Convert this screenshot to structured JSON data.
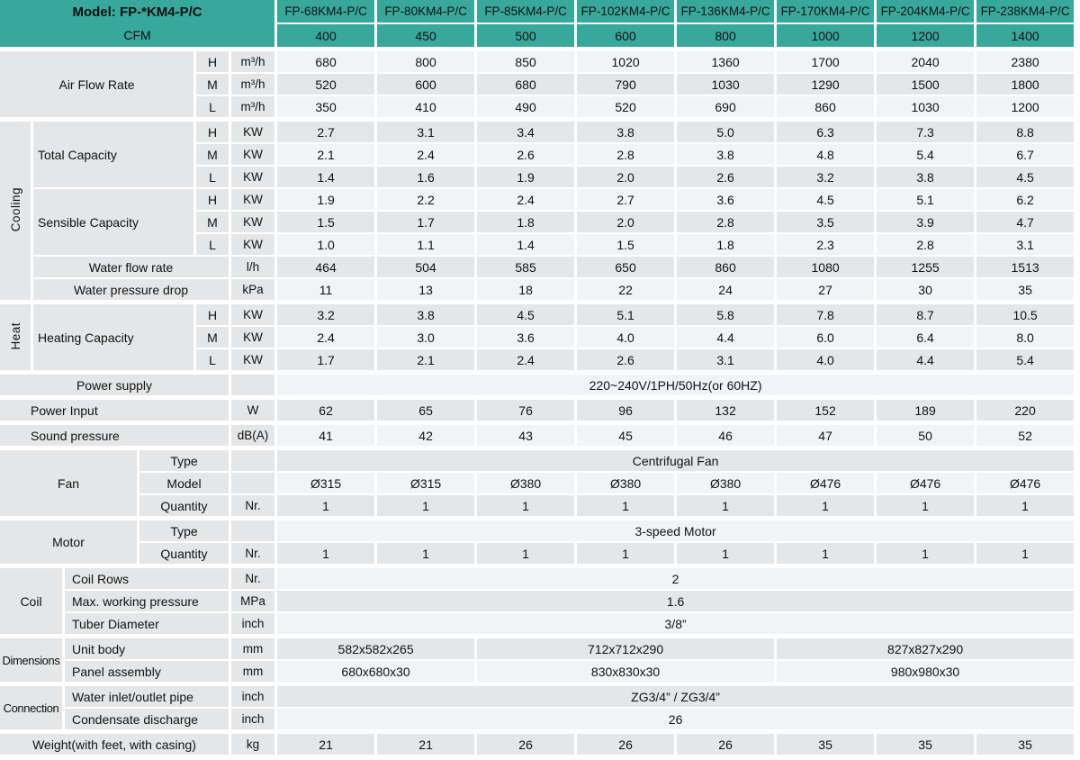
{
  "colors": {
    "teal": "#38A89C",
    "label_bg": "#E4E6E8",
    "row_light": "#F0F4F6",
    "row_dark": "#E4E7E9",
    "text": "#111111"
  },
  "header": {
    "model_label": "Model: FP-*KM4-P/C",
    "cfm_label": "CFM",
    "models": [
      "FP-68KM4-P/C",
      "FP-80KM4-P/C",
      "FP-85KM4-P/C",
      "FP-102KM4-P/C",
      "FP-136KM4-P/C",
      "FP-170KM4-P/C",
      "FP-204KM4-P/C",
      "FP-238KM4-P/C"
    ],
    "cfm_values": [
      "400",
      "450",
      "500",
      "600",
      "800",
      "1000",
      "1200",
      "1400"
    ]
  },
  "table": {
    "rows": [
      {
        "n": "header-model",
        "h": true,
        "cls": "th",
        "cells": [
          {
            "lines": [
              "Model: FP-*KM4-P/C",
              "CFM"
            ],
            "cs": 6,
            "rs": 2,
            "cls": "teal corner",
            "n": "model-header"
          },
          {
            "t": "FP-68KM4-P/C",
            "cls": "teal",
            "n": "column-header-1"
          },
          {
            "t": "FP-80KM4-P/C",
            "cls": "teal",
            "n": "column-header-2"
          },
          {
            "t": "FP-85KM4-P/C",
            "cls": "teal",
            "n": "column-header-3"
          },
          {
            "t": "FP-102KM4-P/C",
            "cls": "teal",
            "n": "column-header-4"
          },
          {
            "t": "FP-136KM4-P/C",
            "cls": "teal",
            "n": "column-header-5"
          },
          {
            "t": "FP-170KM4-P/C",
            "cls": "teal",
            "n": "column-header-6"
          },
          {
            "t": "FP-204KM4-P/C",
            "cls": "teal",
            "n": "column-header-7"
          },
          {
            "t": "FP-238KM4-P/C",
            "cls": "teal",
            "n": "column-header-8"
          }
        ]
      },
      {
        "n": "header-cfm",
        "h": true,
        "cls": "cfm",
        "cells": [
          {
            "t": "400",
            "cls": "teal"
          },
          {
            "t": "450",
            "cls": "teal"
          },
          {
            "t": "500",
            "cls": "teal"
          },
          {
            "t": "600",
            "cls": "teal"
          },
          {
            "t": "800",
            "cls": "teal"
          },
          {
            "t": "1000",
            "cls": "teal"
          },
          {
            "t": "1200",
            "cls": "teal"
          },
          {
            "t": "1400",
            "cls": "teal"
          }
        ]
      },
      {
        "n": "gap",
        "sp": true
      },
      {
        "n": "air-flow-h",
        "cells": [
          {
            "t": "Air Flow Rate",
            "cs": 4,
            "rs": 3,
            "cls": "g",
            "n": "air-flow-rate-label"
          },
          {
            "t": "H",
            "cls": "g",
            "n": "speed-label"
          },
          {
            "t": "m³/h",
            "cls": "g u",
            "n": "unit-label"
          },
          "680",
          "800",
          "850",
          "1020",
          "1360",
          "1700",
          "2040",
          "2380"
        ]
      },
      {
        "n": "air-flow-m",
        "cells": [
          {
            "t": "M",
            "cls": "g",
            "n": "speed-label"
          },
          {
            "t": "m³/h",
            "cls": "g u",
            "n": "unit-label"
          },
          "520",
          "600",
          "680",
          "790",
          "1030",
          "1290",
          "1500",
          "1800"
        ]
      },
      {
        "n": "air-flow-l",
        "cells": [
          {
            "t": "L",
            "cls": "g",
            "n": "speed-label"
          },
          {
            "t": "m³/h",
            "cls": "g u",
            "n": "unit-label"
          },
          "350",
          "410",
          "490",
          "520",
          "690",
          "860",
          "1030",
          "1200"
        ]
      },
      {
        "n": "gap",
        "sp": true
      },
      {
        "n": "total-capacity-h",
        "cells": [
          {
            "t": "Cooling",
            "rs": 8,
            "cls": "g v",
            "vert": true,
            "n": "cooling-group-label"
          },
          {
            "t": "Total Capacity",
            "cs": 3,
            "rs": 3,
            "cls": "g al",
            "n": "total-capacity-label"
          },
          {
            "t": "H",
            "cls": "g",
            "n": "speed-label"
          },
          {
            "t": "KW",
            "cls": "g u",
            "n": "unit-label"
          },
          "2.7",
          "3.1",
          "3.4",
          "3.8",
          "5.0",
          "6.3",
          "7.3",
          "8.8"
        ]
      },
      {
        "n": "total-capacity-m",
        "cells": [
          {
            "t": "M",
            "cls": "g",
            "n": "speed-label"
          },
          {
            "t": "KW",
            "cls": "g u",
            "n": "unit-label"
          },
          "2.1",
          "2.4",
          "2.6",
          "2.8",
          "3.8",
          "4.8",
          "5.4",
          "6.7"
        ]
      },
      {
        "n": "total-capacity-l",
        "cells": [
          {
            "t": "L",
            "cls": "g",
            "n": "speed-label"
          },
          {
            "t": "KW",
            "cls": "g u",
            "n": "unit-label"
          },
          "1.4",
          "1.6",
          "1.9",
          "2.0",
          "2.6",
          "3.2",
          "3.8",
          "4.5"
        ]
      },
      {
        "n": "sensible-capacity-h",
        "cells": [
          {
            "t": "Sensible Capacity",
            "cs": 3,
            "rs": 3,
            "cls": "g al",
            "n": "sensible-capacity-label"
          },
          {
            "t": "H",
            "cls": "g",
            "n": "speed-label"
          },
          {
            "t": "KW",
            "cls": "g u",
            "n": "unit-label"
          },
          "1.9",
          "2.2",
          "2.4",
          "2.7",
          "3.6",
          "4.5",
          "5.1",
          "6.2"
        ]
      },
      {
        "n": "sensible-capacity-m",
        "cells": [
          {
            "t": "M",
            "cls": "g",
            "n": "speed-label"
          },
          {
            "t": "KW",
            "cls": "g u",
            "n": "unit-label"
          },
          "1.5",
          "1.7",
          "1.8",
          "2.0",
          "2.8",
          "3.5",
          "3.9",
          "4.7"
        ]
      },
      {
        "n": "sensible-capacity-l",
        "cells": [
          {
            "t": "L",
            "cls": "g",
            "n": "speed-label"
          },
          {
            "t": "KW",
            "cls": "g u",
            "n": "unit-label"
          },
          "1.0",
          "1.1",
          "1.4",
          "1.5",
          "1.8",
          "2.3",
          "2.8",
          "3.1"
        ]
      },
      {
        "n": "water-flow-rate",
        "cells": [
          {
            "t": "Water flow rate",
            "cs": 4,
            "cls": "g",
            "n": "water-flow-rate-label"
          },
          {
            "t": "l/h",
            "cls": "g u",
            "n": "unit-label"
          },
          "464",
          "504",
          "585",
          "650",
          "860",
          "1080",
          "1255",
          "1513"
        ]
      },
      {
        "n": "water-pressure-drop",
        "cells": [
          {
            "t": "Water pressure drop",
            "cs": 4,
            "cls": "g",
            "n": "water-pressure-drop-label"
          },
          {
            "t": "kPa",
            "cls": "g u",
            "n": "unit-label"
          },
          "11",
          "13",
          "18",
          "22",
          "24",
          "27",
          "30",
          "35"
        ]
      },
      {
        "n": "gap",
        "sp": true
      },
      {
        "n": "heating-capacity-h",
        "cells": [
          {
            "t": "Heat",
            "rs": 3,
            "cls": "g v",
            "vert": true,
            "n": "heat-group-label"
          },
          {
            "t": "Heating Capacity",
            "cs": 3,
            "rs": 3,
            "cls": "g al",
            "n": "heating-capacity-label"
          },
          {
            "t": "H",
            "cls": "g",
            "n": "speed-label"
          },
          {
            "t": "KW",
            "cls": "g u",
            "n": "unit-label"
          },
          "3.2",
          "3.8",
          "4.5",
          "5.1",
          "5.8",
          "7.8",
          "8.7",
          "10.5"
        ]
      },
      {
        "n": "heating-capacity-m",
        "cells": [
          {
            "t": "M",
            "cls": "g",
            "n": "speed-label"
          },
          {
            "t": "KW",
            "cls": "g u",
            "n": "unit-label"
          },
          "2.4",
          "3.0",
          "3.6",
          "4.0",
          "4.4",
          "6.0",
          "6.4",
          "8.0"
        ]
      },
      {
        "n": "heating-capacity-l",
        "cells": [
          {
            "t": "L",
            "cls": "g",
            "n": "speed-label"
          },
          {
            "t": "KW",
            "cls": "g u",
            "n": "unit-label"
          },
          "1.7",
          "2.1",
          "2.4",
          "2.6",
          "3.1",
          "4.0",
          "4.4",
          "5.4"
        ]
      },
      {
        "n": "gap",
        "sp": true
      },
      {
        "n": "power-supply",
        "cells": [
          {
            "t": "Power supply",
            "cs": 5,
            "cls": "g",
            "n": "power-supply-label"
          },
          {
            "t": "",
            "cls": "g",
            "n": "unit-label-empty"
          },
          {
            "t": "220~240V/1PH/50Hz(or 60HZ)",
            "cs": 8,
            "cls": "d",
            "n": "power-supply-value"
          }
        ]
      },
      {
        "n": "gap",
        "sp": true
      },
      {
        "n": "power-input",
        "cells": [
          {
            "t": "Power Input",
            "cs": 5,
            "cls": "g all",
            "n": "power-input-label"
          },
          {
            "t": "W",
            "cls": "g u",
            "n": "unit-label"
          },
          "62",
          "65",
          "76",
          "96",
          "132",
          "152",
          "189",
          "220"
        ]
      },
      {
        "n": "gap",
        "sp": true
      },
      {
        "n": "sound-pressure",
        "cells": [
          {
            "t": "Sound pressure",
            "cs": 5,
            "cls": "g all",
            "n": "sound-pressure-label"
          },
          {
            "t": "dB(A)",
            "cls": "g u",
            "n": "unit-label"
          },
          "41",
          "42",
          "43",
          "45",
          "46",
          "47",
          "50",
          "52"
        ]
      },
      {
        "n": "gap",
        "sp": true
      },
      {
        "n": "fan-type",
        "cells": [
          {
            "t": "Fan",
            "cs": 3,
            "rs": 3,
            "cls": "g",
            "n": "fan-group-label"
          },
          {
            "t": "Type",
            "cs": 2,
            "cls": "g",
            "n": "fan-type-label"
          },
          {
            "t": "",
            "cls": "g",
            "n": "unit-label-empty"
          },
          {
            "t": "Centrifugal Fan",
            "cs": 8,
            "cls": "d",
            "n": "fan-type-value"
          }
        ]
      },
      {
        "n": "fan-model",
        "cells": [
          {
            "t": "Model",
            "cs": 2,
            "cls": "g",
            "n": "fan-model-label"
          },
          {
            "t": "",
            "cls": "g",
            "n": "unit-label-empty"
          },
          "Ø315",
          "Ø315",
          "Ø380",
          "Ø380",
          "Ø380",
          "Ø476",
          "Ø476",
          "Ø476"
        ]
      },
      {
        "n": "fan-quantity",
        "cells": [
          {
            "t": "Quantity",
            "cs": 2,
            "cls": "g",
            "n": "fan-quantity-label"
          },
          {
            "t": "Nr.",
            "cls": "g u",
            "n": "unit-label"
          },
          "1",
          "1",
          "1",
          "1",
          "1",
          "1",
          "1",
          "1"
        ]
      },
      {
        "n": "gap",
        "sp": true
      },
      {
        "n": "motor-type",
        "cells": [
          {
            "t": "Motor",
            "cs": 3,
            "rs": 2,
            "cls": "g",
            "n": "motor-group-label"
          },
          {
            "t": "Type",
            "cs": 2,
            "cls": "g",
            "n": "motor-type-label"
          },
          {
            "t": "",
            "cls": "g",
            "n": "unit-label-empty"
          },
          {
            "t": "3-speed Motor",
            "cs": 8,
            "cls": "d",
            "n": "motor-type-value"
          }
        ]
      },
      {
        "n": "motor-quantity",
        "cells": [
          {
            "t": "Quantity",
            "cs": 2,
            "cls": "g",
            "n": "motor-quantity-label"
          },
          {
            "t": "Nr.",
            "cls": "g u",
            "n": "unit-label"
          },
          "1",
          "1",
          "1",
          "1",
          "1",
          "1",
          "1",
          "1"
        ]
      },
      {
        "n": "gap",
        "sp": true
      },
      {
        "n": "coil-rows",
        "cells": [
          {
            "t": "Coil",
            "cs": 2,
            "rs": 3,
            "cls": "g",
            "n": "coil-group-label"
          },
          {
            "t": "Coil Rows",
            "cs": 3,
            "cls": "g al2",
            "n": "coil-rows-label"
          },
          {
            "t": "Nr.",
            "cls": "g u",
            "n": "unit-label"
          },
          {
            "t": "2",
            "cs": 8,
            "cls": "d",
            "n": "coil-rows-value"
          }
        ]
      },
      {
        "n": "max-working-pressure",
        "cells": [
          {
            "t": "Max. working pressure",
            "cs": 3,
            "cls": "g al2",
            "n": "max-working-pressure-label"
          },
          {
            "t": "MPa",
            "cls": "g u",
            "n": "unit-label"
          },
          {
            "t": "1.6",
            "cs": 8,
            "cls": "d",
            "n": "max-working-pressure-value"
          }
        ]
      },
      {
        "n": "tuber-diameter",
        "cells": [
          {
            "t": "Tuber Diameter",
            "cs": 3,
            "cls": "g al2",
            "n": "tuber-diameter-label"
          },
          {
            "t": "inch",
            "cls": "g u",
            "n": "unit-label"
          },
          {
            "t": "3/8”",
            "cs": 8,
            "cls": "d",
            "n": "tuber-diameter-value"
          }
        ]
      },
      {
        "n": "gap",
        "sp": true
      },
      {
        "n": "unit-body",
        "cells": [
          {
            "t": "Dimensions",
            "cs": 2,
            "rs": 2,
            "cls": "g gl",
            "n": "dimensions-group-label"
          },
          {
            "t": "Unit body",
            "cs": 3,
            "cls": "g al2",
            "n": "unit-body-label"
          },
          {
            "t": "mm",
            "cls": "g u",
            "n": "unit-label"
          },
          {
            "t": "582x582x265",
            "cs": 2,
            "cls": "d",
            "n": "unit-body-value-1"
          },
          {
            "t": "712x712x290",
            "cs": 3,
            "cls": "d",
            "n": "unit-body-value-2"
          },
          {
            "t": "827x827x290",
            "cs": 3,
            "cls": "d",
            "n": "unit-body-value-3"
          }
        ]
      },
      {
        "n": "panel-assembly",
        "cells": [
          {
            "t": "Panel assembly",
            "cs": 3,
            "cls": "g al2",
            "n": "panel-assembly-label"
          },
          {
            "t": "mm",
            "cls": "g u",
            "n": "unit-label"
          },
          {
            "t": "680x680x30",
            "cs": 2,
            "cls": "d",
            "n": "panel-assembly-value-1"
          },
          {
            "t": "830x830x30",
            "cs": 3,
            "cls": "d",
            "n": "panel-assembly-value-2"
          },
          {
            "t": "980x980x30",
            "cs": 3,
            "cls": "d",
            "n": "panel-assembly-value-3"
          }
        ]
      },
      {
        "n": "gap",
        "sp": true
      },
      {
        "n": "water-inlet-outlet",
        "cells": [
          {
            "t": "Connection",
            "cs": 2,
            "rs": 2,
            "cls": "g gl",
            "n": "connection-group-label"
          },
          {
            "t": "Water inlet/outlet pipe",
            "cs": 3,
            "cls": "g al2",
            "n": "water-inlet-outlet-label"
          },
          {
            "t": "inch",
            "cls": "g u",
            "n": "unit-label"
          },
          {
            "t": "ZG3/4” / ZG3/4”",
            "cs": 8,
            "cls": "d",
            "n": "water-inlet-outlet-value"
          }
        ]
      },
      {
        "n": "condensate-discharge",
        "cells": [
          {
            "t": "Condensate discharge",
            "cs": 3,
            "cls": "g al2",
            "n": "condensate-discharge-label"
          },
          {
            "t": "inch",
            "cls": "g u",
            "n": "unit-label"
          },
          {
            "t": "26",
            "cs": 8,
            "cls": "d",
            "n": "condensate-discharge-value"
          }
        ]
      },
      {
        "n": "gap",
        "sp": true
      },
      {
        "n": "weight",
        "cells": [
          {
            "t": "Weight(with feet, with casing)",
            "cs": 5,
            "cls": "g",
            "n": "weight-label"
          },
          {
            "t": "kg",
            "cls": "g u",
            "n": "unit-label"
          },
          "21",
          "21",
          "26",
          "26",
          "26",
          "35",
          "35",
          "35"
        ]
      }
    ]
  }
}
